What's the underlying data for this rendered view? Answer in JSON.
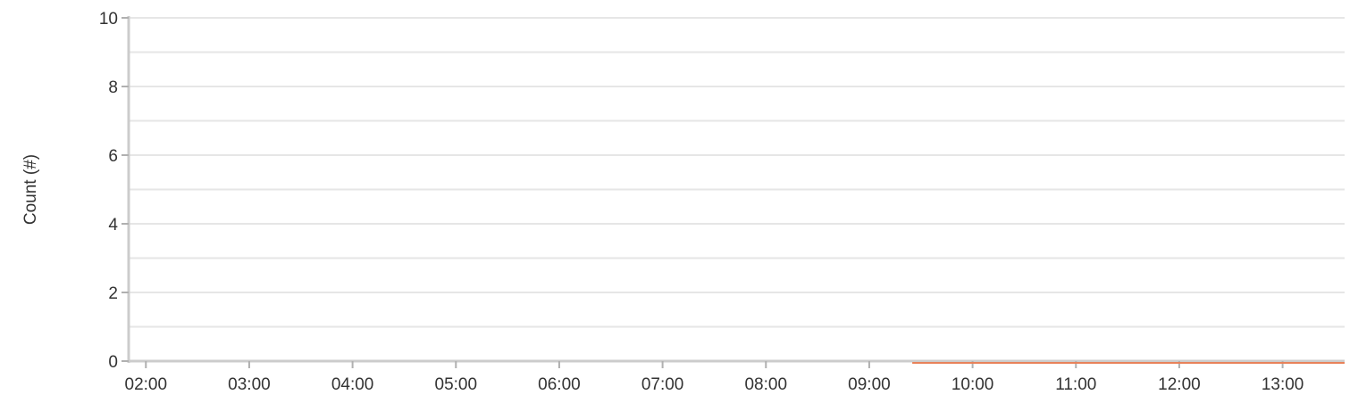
{
  "chart_data": {
    "type": "line",
    "title": "",
    "xlabel": "",
    "ylabel": "Count (#)",
    "ylim": [
      0,
      10
    ],
    "yticks": [
      0,
      2,
      4,
      6,
      8,
      10
    ],
    "xticks": [
      "02:00",
      "03:00",
      "04:00",
      "05:00",
      "06:00",
      "07:00",
      "08:00",
      "09:00",
      "10:00",
      "11:00",
      "12:00",
      "13:00"
    ],
    "xlim": [
      "01:50",
      "13:36"
    ],
    "grid": true,
    "legend": "none",
    "series": [
      {
        "color": "#e8825a",
        "points": [
          {
            "x": "09:25",
            "y": 0
          },
          {
            "x": "13:36",
            "y": 0
          }
        ]
      }
    ]
  }
}
